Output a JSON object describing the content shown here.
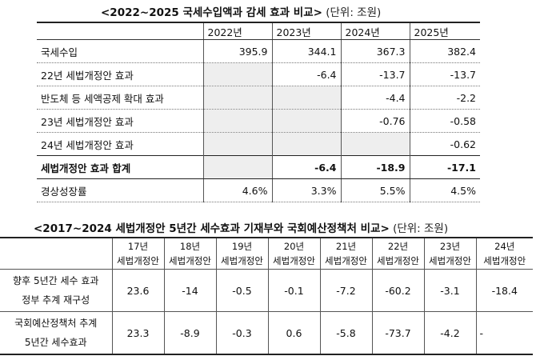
{
  "table1": {
    "title": "<2022~2025 국세수입액과 감세 효과 비교>",
    "unit": "(단위: 조원)",
    "years": [
      "2022년",
      "2023년",
      "2024년",
      "2025년"
    ],
    "rows": [
      {
        "label": "국세수입",
        "values": [
          "395.9",
          "344.1",
          "367.3",
          "382.4"
        ]
      },
      {
        "label": "22년 세법개정안 효과",
        "values": [
          "",
          "-6.4",
          "-13.7",
          "-13.7"
        ]
      },
      {
        "label": "반도체 등 세액공제 확대 효과",
        "values": [
          "",
          "",
          "-4.4",
          "-2.2"
        ]
      },
      {
        "label": "23년 세법개정안 효과",
        "values": [
          "",
          "",
          "-0.76",
          "-0.58"
        ]
      },
      {
        "label": "24년 세법개정안 효과",
        "values": [
          "",
          "",
          "",
          "-0.62"
        ]
      },
      {
        "label": "세법개정안 효과 합계",
        "values": [
          "",
          "-6.4",
          "-18.9",
          "-17.1"
        ]
      },
      {
        "label": "경상성장률",
        "values": [
          "4.6%",
          "3.3%",
          "5.5%",
          "4.5%"
        ]
      }
    ]
  },
  "table2": {
    "title": "<2017~2024 세법개정안 5년간 세수효과 기재부와 국회예산정책처 비교>",
    "unit": "(단위: 조원)",
    "columns": [
      {
        "year": "17년",
        "sub": "세법개정안"
      },
      {
        "year": "18년",
        "sub": "세법개정안"
      },
      {
        "year": "19년",
        "sub": "세법개정안"
      },
      {
        "year": "20년",
        "sub": "세법개정안"
      },
      {
        "year": "21년",
        "sub": "세법개정안"
      },
      {
        "year": "22년",
        "sub": "세법개정안"
      },
      {
        "year": "23년",
        "sub": "세법개정안"
      },
      {
        "year": "24년",
        "sub": "세법개정안"
      }
    ],
    "rows": [
      {
        "label1": "향후 5년간 세수 효과",
        "label2": "정부 추계 재구성",
        "values": [
          "23.6",
          "-14",
          "-0.5",
          "-0.1",
          "-7.2",
          "-60.2",
          "-3.1",
          "-18.4"
        ]
      },
      {
        "label1": "국회예산정책처 추계",
        "label2": "5년간 세수효과",
        "values": [
          "23.3",
          "-8.9",
          "-0.3",
          "0.6",
          "-5.8",
          "-73.7",
          "-4.2",
          "-"
        ]
      }
    ]
  }
}
